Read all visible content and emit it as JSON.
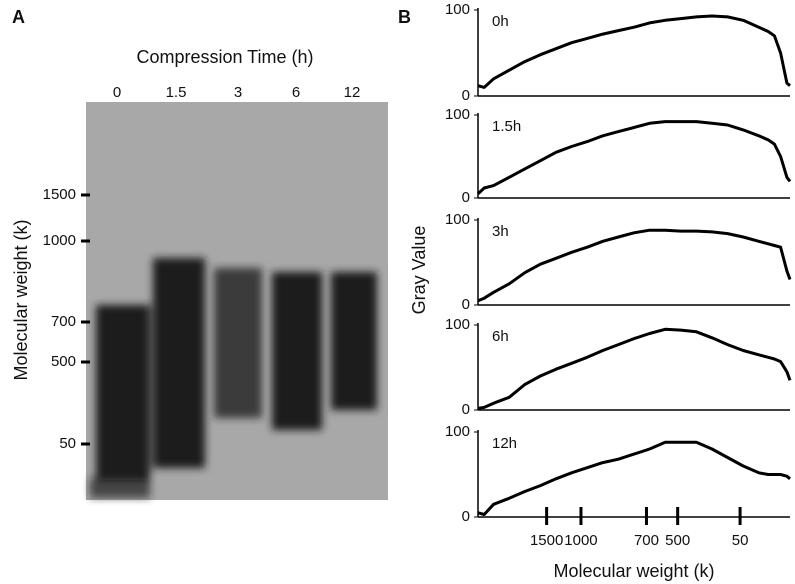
{
  "panel_a": {
    "label": "A",
    "title": "Compression Time (h)",
    "lanes": [
      "0",
      "1.5",
      "3",
      "6",
      "12"
    ],
    "ylabel": "Molecular weight (k)",
    "markers": [
      "1500",
      "1000",
      "700",
      "500",
      "50"
    ]
  },
  "panel_b": {
    "label": "B",
    "ylabel": "Gray Value",
    "xlabel": "Molecular weight (k)"
  },
  "chart_data": [
    {
      "type": "line",
      "title": "0h",
      "x": [
        0,
        2,
        5,
        10,
        15,
        20,
        25,
        30,
        35,
        40,
        45,
        50,
        55,
        60,
        65,
        70,
        75,
        80,
        85,
        90,
        93,
        95,
        97,
        99,
        100
      ],
      "values": [
        12,
        10,
        20,
        30,
        40,
        48,
        55,
        62,
        67,
        72,
        76,
        80,
        85,
        88,
        90,
        92,
        93,
        92,
        88,
        80,
        75,
        70,
        50,
        15,
        12
      ],
      "color": "#000000",
      "xlim": [
        0,
        100
      ],
      "ylim": [
        0,
        100
      ],
      "yticks": [
        0,
        100
      ]
    },
    {
      "type": "line",
      "title": "1.5h",
      "x": [
        0,
        2,
        5,
        10,
        15,
        20,
        25,
        30,
        35,
        40,
        45,
        50,
        55,
        60,
        65,
        70,
        75,
        80,
        85,
        90,
        93,
        95,
        97,
        99,
        100
      ],
      "values": [
        5,
        12,
        15,
        25,
        35,
        45,
        55,
        62,
        68,
        75,
        80,
        85,
        90,
        92,
        92,
        92,
        90,
        88,
        82,
        75,
        70,
        65,
        50,
        25,
        20
      ],
      "color": "#000000",
      "xlim": [
        0,
        100
      ],
      "ylim": [
        0,
        100
      ],
      "yticks": [
        0,
        100
      ]
    },
    {
      "type": "line",
      "title": "3h",
      "x": [
        0,
        2,
        5,
        10,
        15,
        20,
        25,
        30,
        35,
        40,
        45,
        50,
        55,
        60,
        65,
        70,
        75,
        80,
        85,
        90,
        93,
        95,
        97,
        99,
        100
      ],
      "values": [
        5,
        8,
        15,
        25,
        38,
        48,
        55,
        62,
        68,
        75,
        80,
        85,
        88,
        88,
        87,
        87,
        86,
        84,
        80,
        75,
        72,
        70,
        68,
        40,
        30
      ],
      "color": "#000000",
      "xlim": [
        0,
        100
      ],
      "ylim": [
        0,
        100
      ],
      "yticks": [
        0,
        100
      ]
    },
    {
      "type": "line",
      "title": "6h",
      "x": [
        0,
        2,
        5,
        10,
        15,
        20,
        25,
        30,
        35,
        40,
        45,
        50,
        55,
        60,
        65,
        70,
        75,
        80,
        85,
        90,
        93,
        95,
        97,
        99,
        100
      ],
      "values": [
        2,
        3,
        8,
        15,
        30,
        40,
        48,
        55,
        62,
        70,
        77,
        84,
        90,
        95,
        94,
        92,
        85,
        77,
        70,
        65,
        62,
        60,
        57,
        45,
        35
      ],
      "color": "#000000",
      "xlim": [
        0,
        100
      ],
      "ylim": [
        0,
        100
      ],
      "yticks": [
        0,
        100
      ]
    },
    {
      "type": "line",
      "title": "12h",
      "x": [
        0,
        2,
        5,
        10,
        15,
        20,
        25,
        30,
        35,
        40,
        45,
        50,
        55,
        60,
        65,
        70,
        75,
        80,
        85,
        90,
        93,
        95,
        97,
        99,
        100
      ],
      "values": [
        5,
        3,
        15,
        22,
        30,
        37,
        45,
        52,
        58,
        64,
        68,
        74,
        80,
        88,
        88,
        88,
        80,
        70,
        60,
        52,
        50,
        50,
        50,
        48,
        45
      ],
      "color": "#000000",
      "xlim": [
        0,
        100
      ],
      "ylim": [
        0,
        100
      ],
      "yticks": [
        0,
        100
      ],
      "xticks": [
        {
          "value": 22,
          "label": "1500"
        },
        {
          "value": 33,
          "label": "1000"
        },
        {
          "value": 54,
          "label": "700"
        },
        {
          "value": 64,
          "label": "500"
        },
        {
          "value": 84,
          "label": "50"
        }
      ]
    }
  ]
}
